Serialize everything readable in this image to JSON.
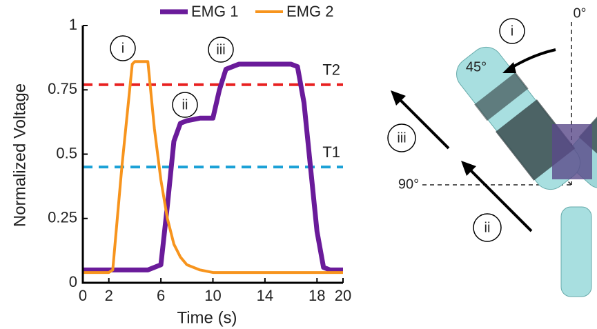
{
  "chart_data": {
    "type": "line",
    "xlabel": "Time (s)",
    "ylabel": "Normalized Voltage",
    "x": [
      0,
      1,
      2,
      2.3,
      3,
      3.8,
      4,
      5,
      5.5,
      6,
      6.5,
      7,
      7.5,
      8,
      9,
      10,
      10.5,
      11,
      12,
      14,
      16,
      16.5,
      17,
      17.5,
      18,
      18.5,
      19,
      20
    ],
    "series": [
      {
        "name": "EMG 1",
        "color": "#6a1b9a",
        "values": [
          0.05,
          0.05,
          0.05,
          0.05,
          0.05,
          0.05,
          0.05,
          0.05,
          0.06,
          0.07,
          0.3,
          0.55,
          0.62,
          0.63,
          0.64,
          0.64,
          0.75,
          0.83,
          0.85,
          0.85,
          0.85,
          0.84,
          0.7,
          0.45,
          0.2,
          0.06,
          0.05,
          0.05
        ]
      },
      {
        "name": "EMG 2",
        "color": "#f7941d",
        "values": [
          0.04,
          0.04,
          0.04,
          0.05,
          0.45,
          0.85,
          0.86,
          0.86,
          0.6,
          0.4,
          0.25,
          0.15,
          0.1,
          0.07,
          0.05,
          0.04,
          0.04,
          0.04,
          0.04,
          0.04,
          0.04,
          0.04,
          0.04,
          0.04,
          0.04,
          0.04,
          0.04,
          0.04
        ]
      }
    ],
    "thresholds": [
      {
        "label": "T1",
        "value": 0.45,
        "color": "#1ba1d6"
      },
      {
        "label": "T2",
        "value": 0.77,
        "color": "#e82020"
      }
    ],
    "annotations": [
      "i",
      "ii",
      "iii"
    ],
    "xlim": [
      0,
      20
    ],
    "xticks": [
      0,
      2,
      6,
      10,
      14,
      18,
      20
    ],
    "ylim": [
      0,
      1
    ],
    "yticks": [
      0,
      0.25,
      0.5,
      0.75,
      1
    ]
  },
  "diagram": {
    "angles": [
      "0°",
      "45°",
      "90°"
    ],
    "steps": [
      "i",
      "ii",
      "iii"
    ]
  }
}
